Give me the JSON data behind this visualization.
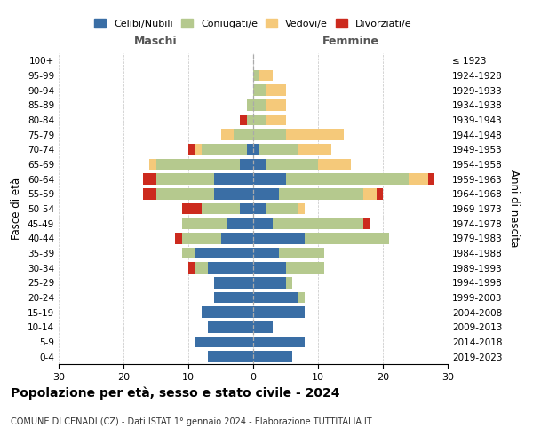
{
  "age_groups": [
    "0-4",
    "5-9",
    "10-14",
    "15-19",
    "20-24",
    "25-29",
    "30-34",
    "35-39",
    "40-44",
    "45-49",
    "50-54",
    "55-59",
    "60-64",
    "65-69",
    "70-74",
    "75-79",
    "80-84",
    "85-89",
    "90-94",
    "95-99",
    "100+"
  ],
  "birth_years": [
    "2019-2023",
    "2014-2018",
    "2009-2013",
    "2004-2008",
    "1999-2003",
    "1994-1998",
    "1989-1993",
    "1984-1988",
    "1979-1983",
    "1974-1978",
    "1969-1973",
    "1964-1968",
    "1959-1963",
    "1954-1958",
    "1949-1953",
    "1944-1948",
    "1939-1943",
    "1934-1938",
    "1929-1933",
    "1924-1928",
    "≤ 1923"
  ],
  "male": {
    "celibi": [
      7,
      9,
      7,
      8,
      6,
      6,
      7,
      9,
      5,
      4,
      2,
      6,
      6,
      2,
      1,
      0,
      0,
      0,
      0,
      0,
      0
    ],
    "coniugati": [
      0,
      0,
      0,
      0,
      0,
      0,
      2,
      2,
      6,
      7,
      6,
      9,
      9,
      13,
      7,
      3,
      1,
      1,
      0,
      0,
      0
    ],
    "vedovi": [
      0,
      0,
      0,
      0,
      0,
      0,
      0,
      0,
      0,
      0,
      0,
      0,
      0,
      1,
      1,
      2,
      0,
      0,
      0,
      0,
      0
    ],
    "divorziati": [
      0,
      0,
      0,
      0,
      0,
      0,
      1,
      0,
      1,
      0,
      3,
      2,
      2,
      0,
      1,
      0,
      1,
      0,
      0,
      0,
      0
    ]
  },
  "female": {
    "nubili": [
      6,
      8,
      3,
      8,
      7,
      5,
      5,
      4,
      8,
      3,
      2,
      4,
      5,
      2,
      1,
      0,
      0,
      0,
      0,
      0,
      0
    ],
    "coniugate": [
      0,
      0,
      0,
      0,
      1,
      1,
      6,
      7,
      13,
      14,
      5,
      13,
      19,
      8,
      6,
      5,
      2,
      2,
      2,
      1,
      0
    ],
    "vedove": [
      0,
      0,
      0,
      0,
      0,
      0,
      0,
      0,
      0,
      0,
      1,
      2,
      3,
      5,
      5,
      9,
      3,
      3,
      3,
      2,
      0
    ],
    "divorziate": [
      0,
      0,
      0,
      0,
      0,
      0,
      0,
      0,
      0,
      1,
      0,
      1,
      1,
      0,
      0,
      0,
      0,
      0,
      0,
      0,
      0
    ]
  },
  "color_celibi": "#3a6ea5",
  "color_coniugati": "#b5c98e",
  "color_vedovi": "#f5c97a",
  "color_divorziati": "#cc2a1e",
  "title": "Popolazione per età, sesso e stato civile - 2024",
  "subtitle": "COMUNE DI CENADI (CZ) - Dati ISTAT 1° gennaio 2024 - Elaborazione TUTTITALIA.IT",
  "xlabel_left": "Maschi",
  "xlabel_right": "Femmine",
  "ylabel_left": "Fasce di età",
  "ylabel_right": "Anni di nascita",
  "xlim": 30
}
